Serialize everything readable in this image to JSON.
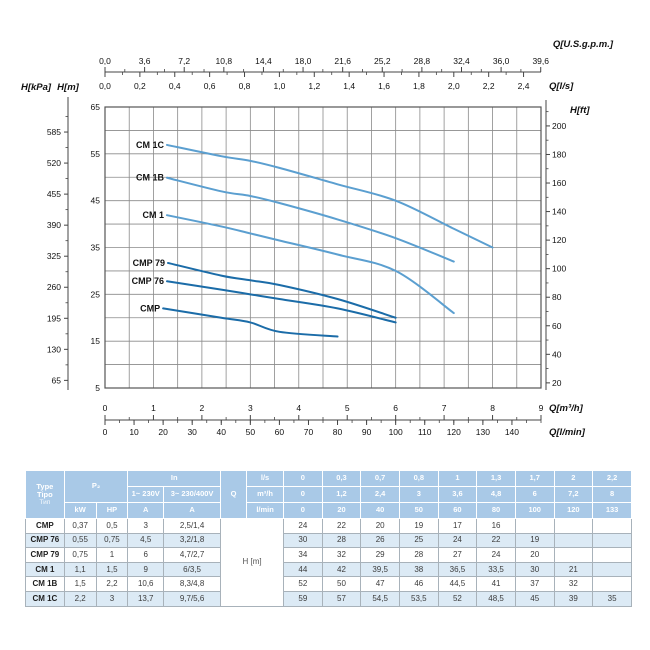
{
  "chart_data": {
    "type": "line",
    "grid": true,
    "axes": {
      "top_gpm": {
        "label": "Q[U.S.g.p.m.]",
        "ticks": [
          "0,0",
          "3,6",
          "7,2",
          "10,8",
          "14,4",
          "18,0",
          "21,6",
          "25,2",
          "28,8",
          "32,4",
          "36,0",
          "39,6"
        ]
      },
      "top_ls": {
        "label": "Q[l/s]",
        "ticks": [
          "0,0",
          "0,2",
          "0,4",
          "0,6",
          "0,8",
          "1,0",
          "1,2",
          "1,4",
          "1,6",
          "1,8",
          "2,0",
          "2,2",
          "2,4"
        ]
      },
      "left_kpa": {
        "label": "H[kPa]",
        "ticks": [
          "585",
          "520",
          "455",
          "390",
          "325",
          "260",
          "195",
          "130",
          "65"
        ]
      },
      "left_m": {
        "label": "H[m]",
        "ticks": [
          "65",
          "55",
          "45",
          "35",
          "25",
          "15",
          "5"
        ],
        "range": [
          5,
          65
        ]
      },
      "right_ft": {
        "label": "H[ft]",
        "ticks": [
          "200",
          "180",
          "160",
          "140",
          "120",
          "100",
          "80",
          "60",
          "40",
          "20"
        ]
      },
      "bottom_m3h": {
        "label": "Q[m³/h]",
        "ticks": [
          "0",
          "1",
          "2",
          "3",
          "4",
          "5",
          "6",
          "7",
          "8",
          "9"
        ],
        "range": [
          0,
          9
        ]
      },
      "bottom_lmin": {
        "label": "Q[l/min]",
        "ticks": [
          "0",
          "10",
          "20",
          "30",
          "40",
          "50",
          "60",
          "70",
          "80",
          "90",
          "100",
          "110",
          "120",
          "130",
          "140"
        ]
      }
    },
    "series": [
      {
        "name": "CMP",
        "color": "#1b6ca8",
        "points": [
          [
            1.2,
            22
          ],
          [
            2.4,
            20
          ],
          [
            3,
            19
          ],
          [
            3.6,
            17
          ],
          [
            4.8,
            16
          ]
        ]
      },
      {
        "name": "CMP 76",
        "color": "#1b6ca8",
        "points": [
          [
            1.28,
            27.8
          ],
          [
            2.4,
            26
          ],
          [
            3,
            25
          ],
          [
            3.6,
            24
          ],
          [
            4.8,
            22
          ],
          [
            6,
            19
          ]
        ]
      },
      {
        "name": "CMP 79",
        "color": "#1b6ca8",
        "points": [
          [
            1.3,
            31.7
          ],
          [
            2.4,
            29
          ],
          [
            3,
            28
          ],
          [
            3.6,
            27
          ],
          [
            4.8,
            24
          ],
          [
            6,
            20
          ]
        ]
      },
      {
        "name": "CM 1",
        "color": "#5b9fd0",
        "points": [
          [
            1.28,
            41.9
          ],
          [
            2.4,
            39.5
          ],
          [
            3,
            38
          ],
          [
            3.6,
            36.5
          ],
          [
            4.8,
            33.5
          ],
          [
            6,
            30
          ],
          [
            7.2,
            21
          ]
        ]
      },
      {
        "name": "CM 1B",
        "color": "#5b9fd0",
        "points": [
          [
            1.28,
            49.9
          ],
          [
            2.4,
            47
          ],
          [
            3,
            46
          ],
          [
            3.6,
            44.5
          ],
          [
            4.8,
            41
          ],
          [
            6,
            37
          ],
          [
            7.2,
            32
          ]
        ]
      },
      {
        "name": "CM 1C",
        "color": "#5b9fd0",
        "points": [
          [
            1.28,
            56.9
          ],
          [
            2.4,
            54.5
          ],
          [
            3,
            53.5
          ],
          [
            3.6,
            52
          ],
          [
            4.8,
            48.5
          ],
          [
            6,
            45
          ],
          [
            7.2,
            39
          ],
          [
            8,
            35
          ]
        ]
      }
    ]
  },
  "table": {
    "header": {
      "type_lines": [
        "Type",
        "Tipo",
        "Тип"
      ],
      "p2": "P₂",
      "p2_units": [
        "kW",
        "HP"
      ],
      "in_label": "In",
      "in_cols": [
        "1~ 230V",
        "3~ 230/400V"
      ],
      "in_units": [
        "A",
        "A"
      ],
      "q_label": "Q",
      "q_rows": [
        {
          "unit": "l/s",
          "values": [
            "0",
            "0,3",
            "0,7",
            "0,8",
            "1",
            "1,3",
            "1,7",
            "2",
            "2,2"
          ]
        },
        {
          "unit": "m³/h",
          "values": [
            "0",
            "1,2",
            "2,4",
            "3",
            "3,6",
            "4,8",
            "6",
            "7,2",
            "8"
          ]
        },
        {
          "unit": "l/min",
          "values": [
            "0",
            "20",
            "40",
            "50",
            "60",
            "80",
            "100",
            "120",
            "133"
          ]
        }
      ]
    },
    "h_label": "H [m]",
    "rows": [
      {
        "type": "CMP",
        "kw": "0,37",
        "hp": "0,5",
        "a1": "3",
        "a2": "2,5/1,4",
        "h": [
          "24",
          "22",
          "20",
          "19",
          "17",
          "16",
          "",
          "",
          ""
        ]
      },
      {
        "type": "CMP 76",
        "kw": "0,55",
        "hp": "0,75",
        "a1": "4,5",
        "a2": "3,2/1,8",
        "h": [
          "30",
          "28",
          "26",
          "25",
          "24",
          "22",
          "19",
          "",
          ""
        ]
      },
      {
        "type": "CMP 79",
        "kw": "0,75",
        "hp": "1",
        "a1": "6",
        "a2": "4,7/2,7",
        "h": [
          "34",
          "32",
          "29",
          "28",
          "27",
          "24",
          "20",
          "",
          ""
        ]
      },
      {
        "type": "CM 1",
        "kw": "1,1",
        "hp": "1,5",
        "a1": "9",
        "a2": "6/3,5",
        "h": [
          "44",
          "42",
          "39,5",
          "38",
          "36,5",
          "33,5",
          "30",
          "21",
          ""
        ]
      },
      {
        "type": "CM 1B",
        "kw": "1,5",
        "hp": "2,2",
        "a1": "10,6",
        "a2": "8,3/4,8",
        "h": [
          "52",
          "50",
          "47",
          "46",
          "44,5",
          "41",
          "37",
          "32",
          ""
        ]
      },
      {
        "type": "CM 1C",
        "kw": "2,2",
        "hp": "3",
        "a1": "13,7",
        "a2": "9,7/5,6",
        "h": [
          "59",
          "57",
          "54,5",
          "53,5",
          "52",
          "48,5",
          "45",
          "39",
          "35"
        ]
      }
    ]
  }
}
